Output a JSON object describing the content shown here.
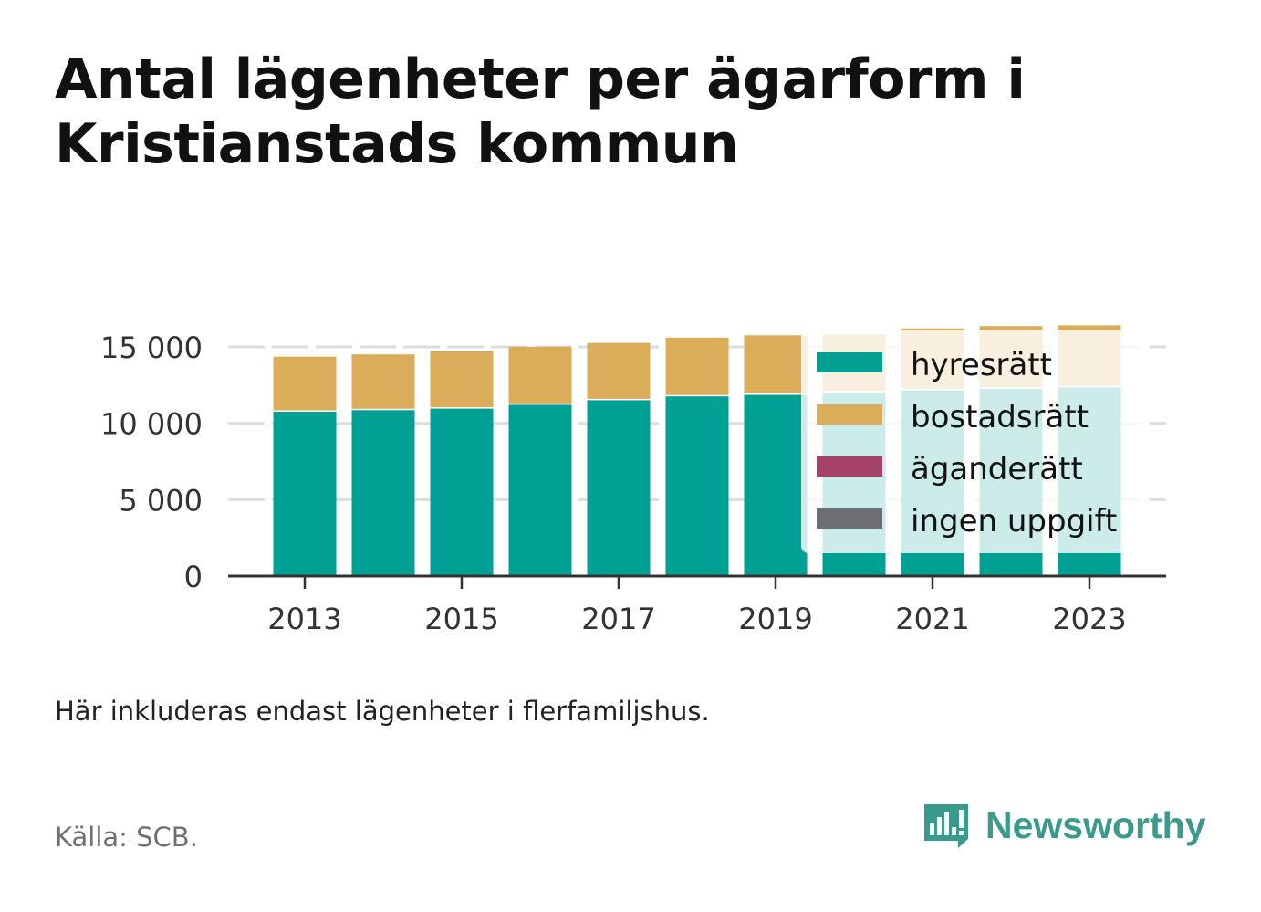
{
  "title_lines": [
    "Antal lägenheter per ägarform i",
    "Kristianstads kommun"
  ],
  "note": "Här inkluderas endast lägenheter i flerfamiljshus.",
  "source": "Källa: SCB.",
  "brand": "Newsworthy",
  "colors": {
    "hyresratt": "#00a195",
    "bostadsratt": "#dbad5a",
    "aganderatt": "#a6416a",
    "ingen_uppgift": "#6e6e75",
    "grid": "#dddddd",
    "axis": "#333333",
    "brand": "#3a9a8c"
  },
  "chart_data": {
    "type": "bar",
    "stacked": true,
    "categories": [
      "2013",
      "2014",
      "2015",
      "2016",
      "2017",
      "2018",
      "2019",
      "2020",
      "2021",
      "2022",
      "2023"
    ],
    "x_tick_labels": [
      "2013",
      "2015",
      "2017",
      "2019",
      "2021",
      "2023"
    ],
    "y_tick_labels": [
      "0",
      "5 000",
      "10 000",
      "15 000"
    ],
    "y_ticks": [
      0,
      5000,
      10000,
      15000
    ],
    "ylim": [
      0,
      17000
    ],
    "grid": true,
    "legend_position": "right, overlapping the last bars",
    "series": [
      {
        "name": "hyresrätt",
        "color": "#00a195",
        "values": [
          10850,
          10950,
          11050,
          11300,
          11600,
          11850,
          11950,
          12100,
          12250,
          12350,
          12450
        ]
      },
      {
        "name": "bostadsrätt",
        "color": "#dbad5a",
        "values": [
          3600,
          3650,
          3750,
          3800,
          3750,
          3850,
          3900,
          3800,
          4050,
          4100,
          4050
        ]
      },
      {
        "name": "äganderätt",
        "color": "#a6416a",
        "values": [
          0,
          0,
          0,
          0,
          0,
          0,
          0,
          0,
          0,
          0,
          0
        ]
      },
      {
        "name": "ingen uppgift",
        "color": "#6e6e75",
        "values": [
          0,
          0,
          0,
          0,
          0,
          0,
          0,
          0,
          0,
          0,
          0
        ]
      }
    ]
  }
}
